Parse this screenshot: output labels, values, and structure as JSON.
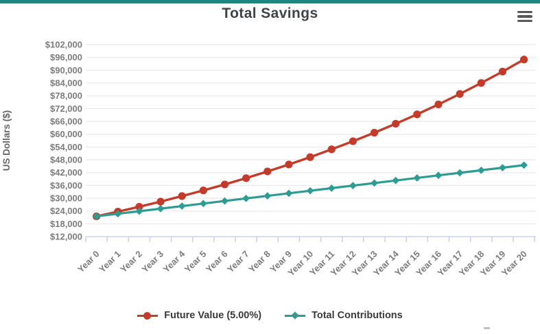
{
  "header": {
    "menu_icon": "hamburger-icon"
  },
  "colors": {
    "topbar": "#26827E",
    "future_value": "#C23B2B",
    "total_contributions": "#2E9C92",
    "gridline": "#ECECEC",
    "axis_line": "#C9D2E8",
    "tick_label": "#7C7C7C",
    "axis_title": "#666666",
    "chart_title": "#3F4446",
    "legend_text": "#3A3A3A"
  },
  "chart_data": {
    "type": "line",
    "title": "Total Savings",
    "xlabel": "",
    "ylabel": "US Dollars ($)",
    "grid": "horizontal",
    "legend_position": "bottom",
    "categories": [
      "Year 0",
      "Year 1",
      "Year 2",
      "Year 3",
      "Year 4",
      "Year 5",
      "Year 6",
      "Year 7",
      "Year 8",
      "Year 9",
      "Year 10",
      "Year 11",
      "Year 12",
      "Year 13",
      "Year 14",
      "Year 15",
      "Year 16",
      "Year 17",
      "Year 18",
      "Year 19",
      "Year 20"
    ],
    "y_axis": {
      "min": 12000,
      "max": 102000,
      "step": 6000,
      "tick_prefix": "$",
      "tick_labels": [
        "$102,000",
        "$96,000",
        "$90,000",
        "$84,000",
        "$78,000",
        "$72,000",
        "$66,000",
        "$60,000",
        "$54,000",
        "$48,000",
        "$42,000",
        "$36,000",
        "$30,000",
        "$24,000",
        "$18,000",
        "$12,000"
      ]
    },
    "series": [
      {
        "name": "Future Value (5.00%)",
        "marker": "circle",
        "color": "#C23B2B",
        "values": [
          21500,
          23700,
          26000,
          28400,
          31000,
          33650,
          36450,
          39400,
          42550,
          45800,
          49250,
          52900,
          56700,
          60700,
          64900,
          69300,
          73950,
          78850,
          84000,
          89350,
          95000
        ]
      },
      {
        "name": "Total Contributions",
        "marker": "diamond",
        "color": "#2E9C92",
        "values": [
          21500,
          22700,
          23900,
          25100,
          26300,
          27500,
          28700,
          29900,
          31100,
          32300,
          33500,
          34700,
          35900,
          37100,
          38300,
          39500,
          40700,
          41900,
          43100,
          44300,
          45500
        ]
      }
    ]
  }
}
